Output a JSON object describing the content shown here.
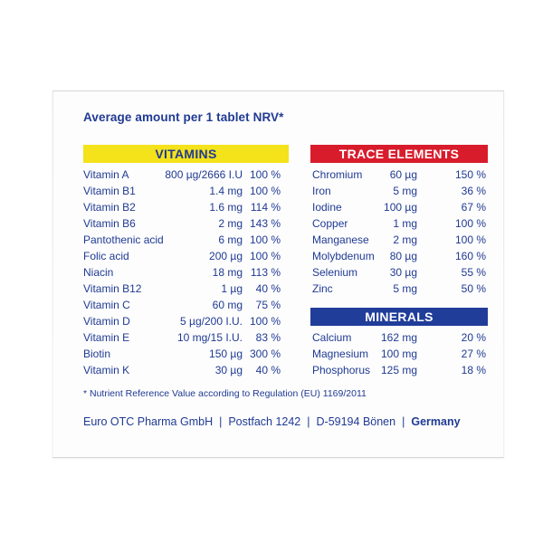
{
  "heading": "Average amount per 1 tablet NRV*",
  "vitamins": {
    "title": "VITAMINS",
    "rows": [
      {
        "name": "Vitamin A",
        "amount": "800 µg/2666 I.U",
        "nrv": "100 %"
      },
      {
        "name": "Vitamin B1",
        "amount": "1.4 mg",
        "nrv": "100 %"
      },
      {
        "name": "Vitamin B2",
        "amount": "1.6 mg",
        "nrv": "114 %"
      },
      {
        "name": "Vitamin B6",
        "amount": "2 mg",
        "nrv": "143 %"
      },
      {
        "name": "Pantothenic acid",
        "amount": "6 mg",
        "nrv": "100 %"
      },
      {
        "name": "Folic acid",
        "amount": "200 µg",
        "nrv": "100 %"
      },
      {
        "name": "Niacin",
        "amount": "18 mg",
        "nrv": "113 %"
      },
      {
        "name": "Vitamin B12",
        "amount": "1 µg",
        "nrv": "40 %"
      },
      {
        "name": "Vitamin C",
        "amount": "60 mg",
        "nrv": "75 %"
      },
      {
        "name": "Vitamin D",
        "amount": "5 µg/200 I.U.",
        "nrv": "100 %"
      },
      {
        "name": "Vitamin E",
        "amount": "10 mg/15 I.U.",
        "nrv": "83 %"
      },
      {
        "name": "Biotin",
        "amount": "150 µg",
        "nrv": "300 %"
      },
      {
        "name": "Vitamin K",
        "amount": "30 µg",
        "nrv": "40 %"
      }
    ]
  },
  "trace_elements": {
    "title": "TRACE ELEMENTS",
    "rows": [
      {
        "name": "Chromium",
        "amount": "60 µg",
        "nrv": "150 %"
      },
      {
        "name": "Iron",
        "amount": "5 mg",
        "nrv": "36 %"
      },
      {
        "name": "Iodine",
        "amount": "100 µg",
        "nrv": "67 %"
      },
      {
        "name": "Copper",
        "amount": "1 mg",
        "nrv": "100 %"
      },
      {
        "name": "Manganese",
        "amount": "2 mg",
        "nrv": "100 %"
      },
      {
        "name": "Molybdenum",
        "amount": "80 µg",
        "nrv": "160 %"
      },
      {
        "name": "Selenium",
        "amount": "30 µg",
        "nrv": "55 %"
      },
      {
        "name": "Zinc",
        "amount": "5 mg",
        "nrv": "50 %"
      }
    ]
  },
  "minerals": {
    "title": "MINERALS",
    "rows": [
      {
        "name": "Calcium",
        "amount": "162 mg",
        "nrv": "20 %"
      },
      {
        "name": "Magnesium",
        "amount": "100 mg",
        "nrv": "27 %"
      },
      {
        "name": "Phosphorus",
        "amount": "125 mg",
        "nrv": "18 %"
      }
    ]
  },
  "footnote": "* Nutrient Reference Value according to Regulation (EU) 1169/2011",
  "footer": {
    "company": "Euro OTC Pharma GmbH",
    "postbox": "Postfach 1242",
    "city": "D-59194 Bönen",
    "country": "Germany",
    "separator": "|"
  },
  "colors": {
    "text_blue": "#1f3a93",
    "vitamins_bar": "#f4e21a",
    "trace_bar": "#d81c2c",
    "minerals_bar": "#213d9a"
  }
}
